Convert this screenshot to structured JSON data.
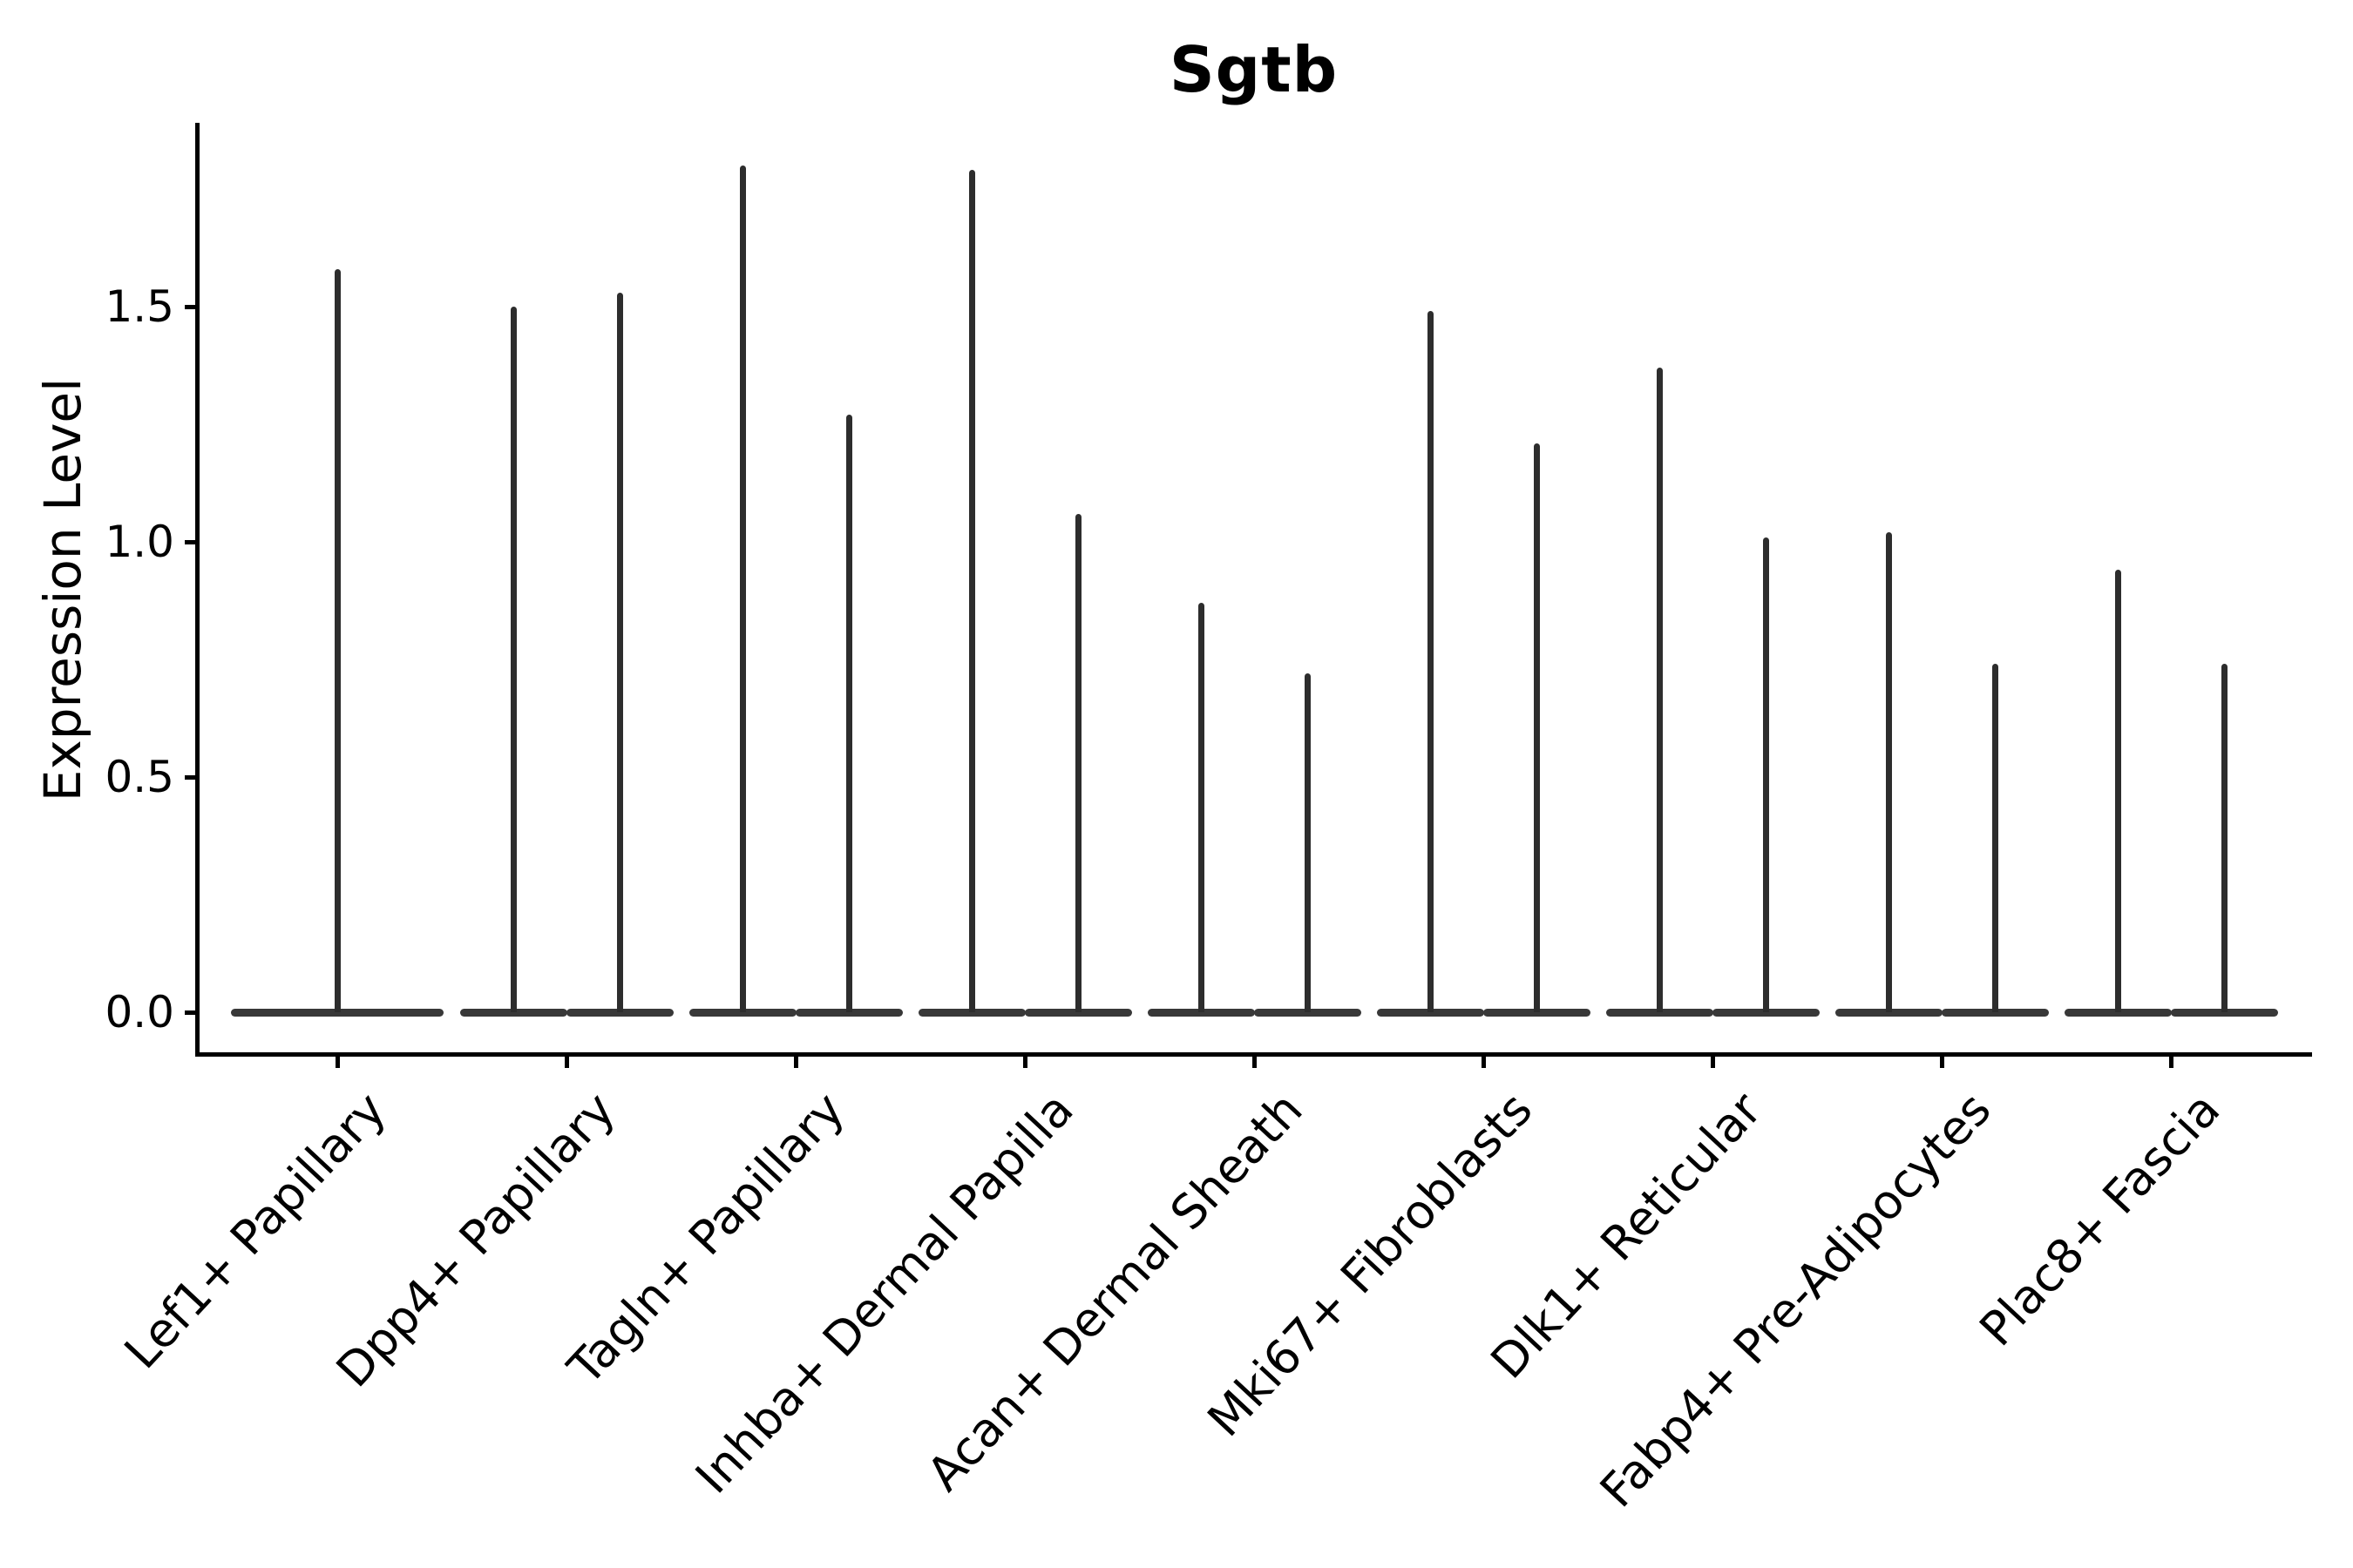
{
  "title": "Sgtb",
  "y_axis": {
    "label": "Expression Level",
    "tick_labels": [
      "0.0",
      "0.5",
      "1.0",
      "1.5"
    ],
    "tick_values": [
      0.0,
      0.5,
      1.0,
      1.5
    ]
  },
  "chart_data": {
    "type": "violin",
    "title": "Sgtb",
    "xlabel": "",
    "ylabel": "Expression Level",
    "categories": [
      "Lef1+ Papillary",
      "Dpp4+ Papillary",
      "Tagln+ Papillary",
      "Inhba+ Dermal Papilla",
      "Acan+ Dermal Sheath",
      "Mki67+ Fibroblasts",
      "Dlk1+ Reticular",
      "Fabp4+ Pre-Adipocytes",
      "Plac8+ Fascia"
    ],
    "violin_max_expression": [
      [
        1.58
      ],
      [
        1.5,
        1.53
      ],
      [
        1.8,
        1.27
      ],
      [
        1.79,
        1.06
      ],
      [
        0.87,
        0.72
      ],
      [
        1.49,
        1.21
      ],
      [
        1.37,
        1.01
      ],
      [
        1.02,
        0.74
      ],
      [
        0.94,
        0.74
      ]
    ],
    "violin_bulk_value": 0.0,
    "description": "Each category shows narrow violin(s): a flat dense mass at expression 0 and a thin spike up to the max expression value.",
    "yticks": [
      0.0,
      0.5,
      1.0,
      1.5
    ],
    "ylim": [
      -0.09,
      1.89
    ],
    "x_tick_rotation_deg": 47,
    "grid": false,
    "legend": false,
    "colors": {
      "violin": "#2d2d2d",
      "violin_base": "#383838",
      "axis": "#000000",
      "text": "#000000",
      "background": "#ffffff"
    }
  }
}
